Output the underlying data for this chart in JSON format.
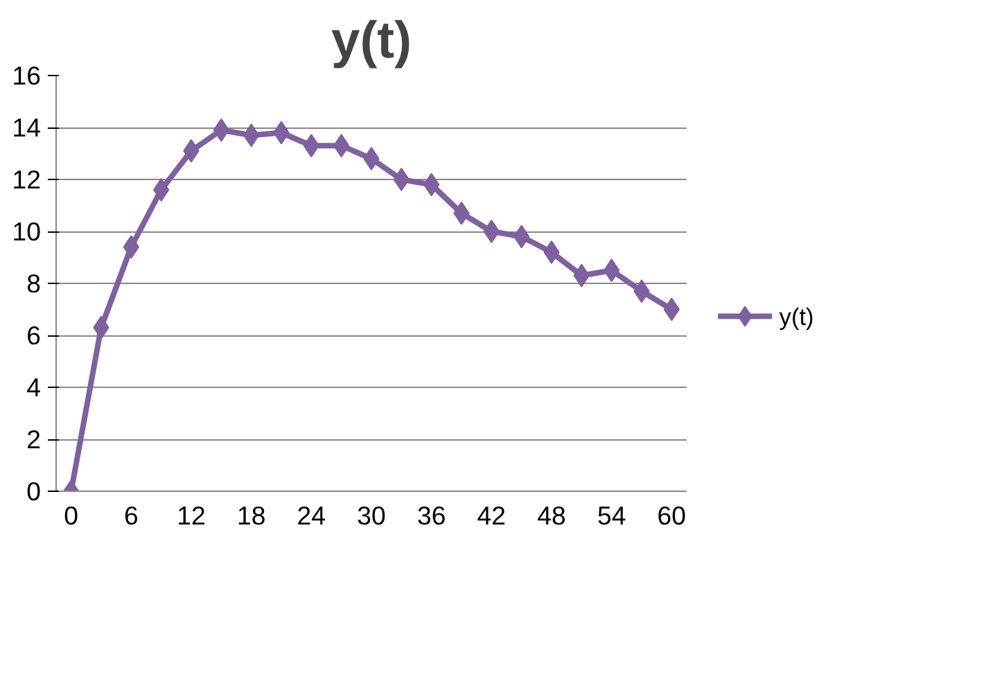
{
  "chart_data": {
    "type": "line",
    "title": "y(t)",
    "x": [
      0,
      3,
      6,
      9,
      12,
      15,
      18,
      21,
      24,
      27,
      30,
      33,
      36,
      39,
      42,
      45,
      48,
      51,
      54,
      57,
      60
    ],
    "series": [
      {
        "name": "y(t)",
        "color": "#7f60a0",
        "values": [
          0,
          6.3,
          9.4,
          11.6,
          13.1,
          13.9,
          13.7,
          13.8,
          13.3,
          13.3,
          12.8,
          12.0,
          11.8,
          10.7,
          10.0,
          9.8,
          9.2,
          8.3,
          8.5,
          7.7,
          7.0
        ]
      }
    ],
    "xlim": [
      -1.5,
      61.5
    ],
    "xticks": [
      0,
      6,
      12,
      18,
      24,
      30,
      36,
      42,
      48,
      54,
      60
    ],
    "ylim": [
      0,
      16
    ],
    "yticks": [
      0,
      2,
      4,
      6,
      8,
      10,
      12,
      14,
      16
    ],
    "grid": "y",
    "legend": "right",
    "marker": "diamond",
    "line_style": "solid"
  }
}
